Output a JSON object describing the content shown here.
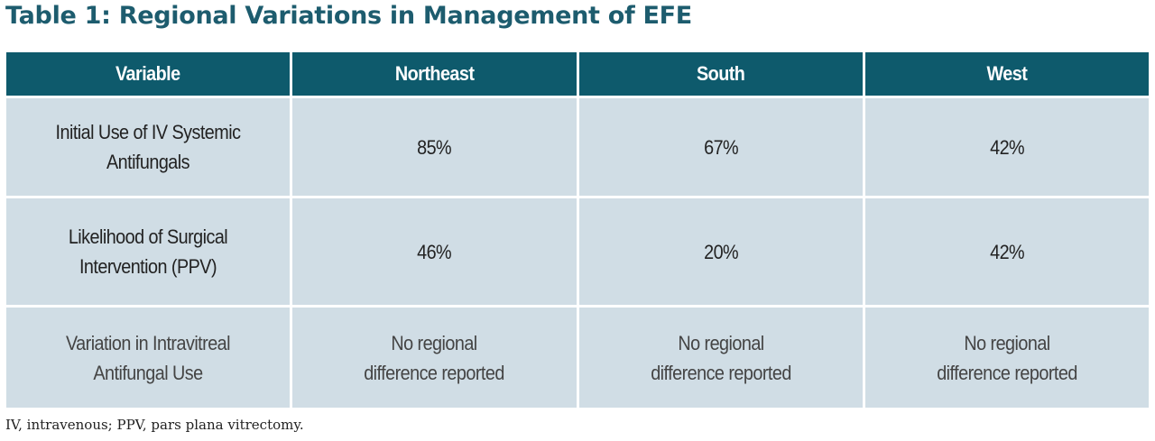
{
  "title": "Table 1: Regional Variations in Management of EFE",
  "colors": {
    "header_bg": "#0e5a6c",
    "row_bg": "#d0dde5",
    "title": "#1d5c6e"
  },
  "table": {
    "headers": [
      "Variable",
      "Northeast",
      "South",
      "West"
    ],
    "rows": [
      {
        "variable": "Initial Use of IV Systemic Antifungals",
        "northeast": "85%",
        "south": "67%",
        "west": "42%"
      },
      {
        "variable": "Likelihood of Surgical Intervention (PPV)",
        "northeast": "46%",
        "south": "20%",
        "west": "42%"
      },
      {
        "variable": "Variation in Intravitreal Antifungal Use",
        "northeast": "No regional difference reported",
        "south": "No regional difference reported",
        "west": "No regional difference reported"
      }
    ]
  },
  "footnote": "IV, intravenous; PPV, pars plana vitrectomy."
}
